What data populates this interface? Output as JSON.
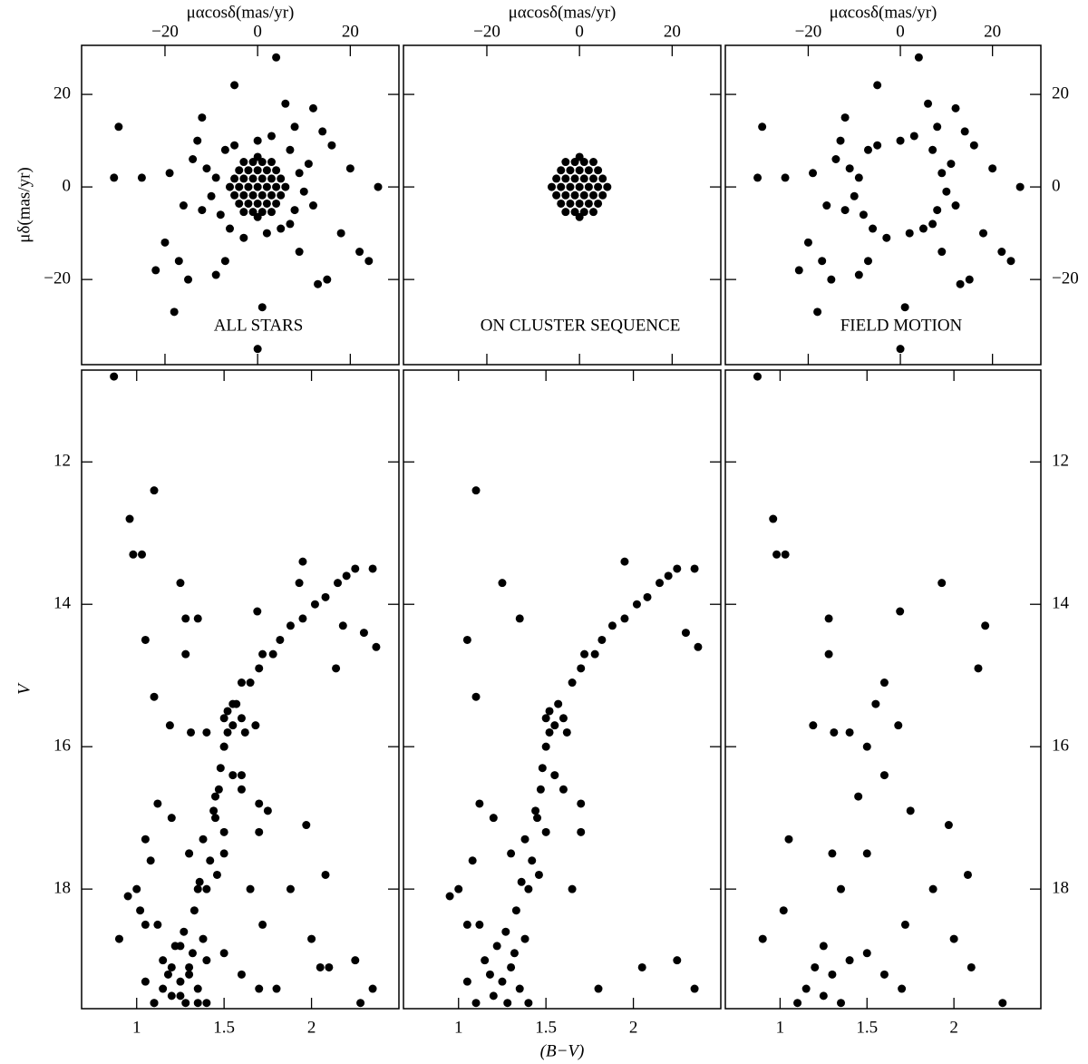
{
  "chart_data": [
    {
      "type": "scatter",
      "color": "#000000",
      "xlabel": "μαcosδ(mas/yr)",
      "ylabel": "μδ(mas/yr)",
      "annotation": "ALL STARS",
      "xtick_labels": "top",
      "ytick_labels": "left",
      "xlim": [
        -38,
        30.5
      ],
      "ylim": [
        -38.4,
        30.6
      ],
      "xticks": [
        {
          "value": -20,
          "label": "−20"
        },
        0,
        20
      ],
      "yticks": [
        {
          "value": -20,
          "label": "−20"
        },
        0,
        20
      ],
      "x": [
        -6,
        -4,
        -2,
        0,
        2,
        4,
        6,
        -5,
        -3,
        -1,
        1,
        3,
        5,
        -5,
        -3,
        -1,
        1,
        3,
        5,
        -4,
        -2,
        0,
        2,
        4,
        -4,
        -2,
        0,
        2,
        4,
        -3,
        -1,
        1,
        3,
        -3,
        -1,
        1,
        3,
        0,
        0,
        9,
        8,
        -9,
        -8,
        0,
        2,
        -5,
        5,
        10,
        -10,
        7,
        -7,
        7,
        -6,
        11,
        -11,
        3,
        -3,
        12,
        -12,
        -13,
        14,
        -22,
        -15,
        18,
        -25,
        -30,
        -31,
        22,
        24,
        26,
        4,
        -5,
        1,
        0,
        -18,
        -20,
        -17,
        15,
        13,
        20,
        -14,
        -16,
        -9,
        9,
        16,
        -12,
        12,
        6,
        -7,
        -19,
        8
      ],
      "values": [
        0,
        0,
        0,
        0,
        0,
        0,
        0,
        1.8,
        1.8,
        1.8,
        1.8,
        1.8,
        1.8,
        -1.8,
        -1.8,
        -1.8,
        -1.8,
        -1.8,
        -1.8,
        3.6,
        3.6,
        3.6,
        3.6,
        3.6,
        -3.6,
        -3.6,
        -3.6,
        -3.6,
        -3.6,
        5.4,
        5.4,
        5.4,
        5.4,
        -5.4,
        -5.4,
        -5.4,
        -5.4,
        6.5,
        -6.5,
        3,
        -5,
        2,
        -6,
        10,
        -10,
        9,
        -9,
        -1,
        -2,
        8,
        8,
        -8,
        -9,
        5,
        4,
        11,
        -11,
        -4,
        -5,
        10,
        12,
        -18,
        -20,
        -10,
        2,
        13,
        2,
        -14,
        -16,
        0,
        28,
        22,
        -26,
        -35,
        -27,
        -12,
        -16,
        -20,
        -21,
        4,
        6,
        -4,
        -19,
        -14,
        9,
        15,
        17,
        18,
        -16,
        3,
        13
      ]
    },
    {
      "type": "scatter",
      "color": "#000000",
      "xlabel": "μαcosδ(mas/yr)",
      "annotation": "ON CLUSTER SEQUENCE",
      "xtick_labels": "top",
      "ytick_labels": "none",
      "xlim": [
        -38,
        30.5
      ],
      "ylim": [
        -38.4,
        30.6
      ],
      "xticks": [
        {
          "value": -20,
          "label": "−20"
        },
        0,
        20
      ],
      "yticks": [
        -20,
        0,
        20
      ],
      "x": [
        -6,
        -4,
        -2,
        0,
        2,
        4,
        6,
        -5,
        -3,
        -1,
        1,
        3,
        5,
        -5,
        -3,
        -1,
        1,
        3,
        5,
        -4,
        -2,
        0,
        2,
        4,
        -4,
        -2,
        0,
        2,
        4,
        -3,
        -1,
        1,
        3,
        -3,
        -1,
        1,
        3,
        0,
        0
      ],
      "values": [
        0,
        0,
        0,
        0,
        0,
        0,
        0,
        1.8,
        1.8,
        1.8,
        1.8,
        1.8,
        1.8,
        -1.8,
        -1.8,
        -1.8,
        -1.8,
        -1.8,
        -1.8,
        3.6,
        3.6,
        3.6,
        3.6,
        3.6,
        -3.6,
        -3.6,
        -3.6,
        -3.6,
        -3.6,
        5.4,
        5.4,
        5.4,
        5.4,
        -5.4,
        -5.4,
        -5.4,
        -5.4,
        6.5,
        -6.5
      ]
    },
    {
      "type": "scatter",
      "color": "#000000",
      "xlabel": "μαcosδ(mas/yr)",
      "annotation": "FIELD MOTION",
      "xtick_labels": "top",
      "ytick_labels": "right",
      "xlim": [
        -38,
        30.5
      ],
      "ylim": [
        -38.4,
        30.6
      ],
      "xticks": [
        {
          "value": -20,
          "label": "−20"
        },
        0,
        20
      ],
      "yticks": [
        {
          "value": -20,
          "label": "−20"
        },
        0,
        20
      ],
      "x": [
        9,
        8,
        -9,
        -8,
        0,
        2,
        -5,
        5,
        10,
        -10,
        7,
        -7,
        7,
        -6,
        11,
        -11,
        3,
        -3,
        12,
        -12,
        -13,
        14,
        -22,
        -15,
        18,
        -25,
        -30,
        -31,
        22,
        24,
        26,
        4,
        -5,
        1,
        0,
        -18,
        -20,
        -17,
        15,
        13,
        20,
        -14,
        -16,
        -9,
        9,
        16,
        -12,
        12,
        6,
        -7,
        -19,
        8
      ],
      "values": [
        3,
        -5,
        2,
        -6,
        10,
        -10,
        9,
        -9,
        -1,
        -2,
        8,
        8,
        -8,
        -9,
        5,
        4,
        11,
        -11,
        -4,
        -5,
        10,
        12,
        -18,
        -20,
        -10,
        2,
        13,
        2,
        -14,
        -16,
        0,
        28,
        22,
        -26,
        -35,
        -27,
        -12,
        -16,
        -20,
        -21,
        4,
        6,
        -4,
        -19,
        -14,
        9,
        15,
        17,
        18,
        -16,
        3,
        13
      ]
    },
    {
      "type": "scatter",
      "color": "#000000",
      "ylabel": "V",
      "xtick_labels": "bottom",
      "ytick_labels": "left",
      "xlim": [
        0.685,
        2.5
      ],
      "ylim": [
        19.68,
        10.71
      ],
      "xticks": [
        1,
        1.5,
        2
      ],
      "yticks": [
        12,
        14,
        16,
        18
      ],
      "x": [
        1.2,
        1.25,
        1.3,
        1.28,
        1.18,
        1.32,
        1.22,
        1.15,
        1.35,
        1.1,
        1.27,
        1.38,
        1.12,
        1.05,
        1.4,
        1.33,
        1.4,
        1.42,
        1.38,
        1.45,
        1.47,
        1.48,
        1.5,
        1.52,
        1.44,
        1.46,
        1.36,
        1.5,
        1.55,
        1.3,
        1.5,
        1.55,
        1.6,
        1.57,
        1.62,
        1.52,
        1.65,
        1.7,
        1.72,
        1.78,
        1.82,
        1.88,
        1.95,
        2.02,
        2.08,
        2.15,
        2.2,
        2.25,
        2.35,
        1.95,
        1.1,
        1.05,
        1.25,
        1.35,
        1.1,
        1.0,
        1.05,
        0.95,
        1.12,
        1.2,
        1.08,
        1.7,
        2.05,
        2.25,
        2.35,
        1.8,
        1.65,
        1.7,
        2.3,
        2.37,
        1.6,
        0.87,
        0.96,
        0.98,
        1.03,
        1.28,
        1.28,
        1.69,
        1.93,
        2.18,
        2.14,
        1.6,
        1.55,
        1.02,
        1.19,
        1.31,
        1.4,
        1.68,
        1.5,
        1.6,
        1.45,
        1.75,
        1.97,
        1.3,
        1.5,
        2.08,
        1.88,
        1.35,
        1.25,
        1.2,
        1.3,
        1.25,
        1.15,
        1.35,
        1.4,
        1.1,
        1.5,
        1.6,
        1.7,
        0.9,
        2.0,
        2.1,
        2.28,
        1.05,
        1.72
      ],
      "values": [
        19.5,
        19.3,
        19.1,
        19.6,
        19.2,
        18.9,
        18.8,
        19.0,
        19.4,
        19.6,
        18.6,
        18.7,
        18.5,
        19.3,
        19.6,
        18.3,
        18.0,
        17.6,
        17.3,
        17.0,
        16.6,
        16.3,
        16.0,
        15.8,
        16.9,
        17.8,
        17.9,
        17.2,
        16.4,
        17.5,
        15.6,
        15.7,
        15.6,
        15.4,
        15.8,
        15.5,
        15.1,
        14.9,
        14.7,
        14.7,
        14.5,
        14.3,
        14.2,
        14.0,
        13.9,
        13.7,
        13.6,
        13.5,
        13.5,
        13.4,
        12.4,
        14.5,
        13.7,
        14.2,
        15.3,
        18.0,
        18.5,
        18.1,
        16.8,
        17.0,
        17.6,
        16.8,
        19.1,
        19.0,
        19.4,
        19.4,
        18.0,
        17.2,
        14.4,
        14.6,
        16.6,
        10.8,
        12.8,
        13.3,
        13.3,
        14.2,
        14.7,
        14.1,
        13.7,
        14.3,
        14.9,
        15.1,
        15.4,
        18.3,
        15.7,
        15.8,
        15.8,
        15.7,
        16.0,
        16.4,
        16.7,
        16.9,
        17.1,
        17.5,
        17.5,
        17.8,
        18.0,
        18.0,
        18.8,
        19.1,
        19.2,
        19.5,
        19.4,
        19.6,
        19.0,
        19.6,
        18.9,
        19.2,
        19.4,
        18.7,
        18.7,
        19.1,
        19.6,
        17.3,
        18.5
      ]
    },
    {
      "type": "scatter",
      "color": "#000000",
      "xlabel": "(B−V)",
      "xtick_labels": "bottom",
      "ytick_labels": "none",
      "xlim": [
        0.685,
        2.5
      ],
      "ylim": [
        19.68,
        10.71
      ],
      "xticks": [
        1,
        1.5,
        2
      ],
      "yticks": [
        12,
        14,
        16,
        18
      ],
      "x": [
        1.2,
        1.25,
        1.3,
        1.28,
        1.18,
        1.32,
        1.22,
        1.15,
        1.35,
        1.1,
        1.27,
        1.38,
        1.12,
        1.05,
        1.4,
        1.33,
        1.4,
        1.42,
        1.38,
        1.45,
        1.47,
        1.48,
        1.5,
        1.52,
        1.44,
        1.46,
        1.36,
        1.5,
        1.55,
        1.3,
        1.5,
        1.55,
        1.6,
        1.57,
        1.62,
        1.52,
        1.65,
        1.7,
        1.72,
        1.78,
        1.82,
        1.88,
        1.95,
        2.02,
        2.08,
        2.15,
        2.2,
        2.25,
        2.35,
        1.95,
        1.1,
        1.05,
        1.25,
        1.35,
        1.1,
        1.0,
        1.05,
        0.95,
        1.12,
        1.2,
        1.08,
        1.7,
        2.05,
        2.25,
        2.35,
        1.8,
        1.65,
        1.7,
        2.3,
        2.37,
        1.6
      ],
      "values": [
        19.5,
        19.3,
        19.1,
        19.6,
        19.2,
        18.9,
        18.8,
        19.0,
        19.4,
        19.6,
        18.6,
        18.7,
        18.5,
        19.3,
        19.6,
        18.3,
        18.0,
        17.6,
        17.3,
        17.0,
        16.6,
        16.3,
        16.0,
        15.8,
        16.9,
        17.8,
        17.9,
        17.2,
        16.4,
        17.5,
        15.6,
        15.7,
        15.6,
        15.4,
        15.8,
        15.5,
        15.1,
        14.9,
        14.7,
        14.7,
        14.5,
        14.3,
        14.2,
        14.0,
        13.9,
        13.7,
        13.6,
        13.5,
        13.5,
        13.4,
        12.4,
        14.5,
        13.7,
        14.2,
        15.3,
        18.0,
        18.5,
        18.1,
        16.8,
        17.0,
        17.6,
        16.8,
        19.1,
        19.0,
        19.4,
        19.4,
        18.0,
        17.2,
        14.4,
        14.6,
        16.6
      ]
    },
    {
      "type": "scatter",
      "color": "#000000",
      "xtick_labels": "bottom",
      "ytick_labels": "right",
      "xlim": [
        0.685,
        2.5
      ],
      "ylim": [
        19.68,
        10.71
      ],
      "xticks": [
        1,
        1.5,
        2
      ],
      "yticks": [
        12,
        14,
        16,
        18
      ],
      "x": [
        0.87,
        0.96,
        0.98,
        1.03,
        1.28,
        1.28,
        1.69,
        1.93,
        2.18,
        2.14,
        1.6,
        1.55,
        1.02,
        1.19,
        1.31,
        1.4,
        1.68,
        1.5,
        1.6,
        1.45,
        1.75,
        1.97,
        1.3,
        1.5,
        2.08,
        1.88,
        1.35,
        1.25,
        1.2,
        1.3,
        1.25,
        1.15,
        1.35,
        1.4,
        1.1,
        1.5,
        1.6,
        1.7,
        0.9,
        2.0,
        2.1,
        2.28,
        1.05,
        1.72
      ],
      "values": [
        10.8,
        12.8,
        13.3,
        13.3,
        14.2,
        14.7,
        14.1,
        13.7,
        14.3,
        14.9,
        15.1,
        15.4,
        18.3,
        15.7,
        15.8,
        15.8,
        15.7,
        16.0,
        16.4,
        16.7,
        16.9,
        17.1,
        17.5,
        17.5,
        17.8,
        18.0,
        18.0,
        18.8,
        19.1,
        19.2,
        19.5,
        19.4,
        19.6,
        19.0,
        19.6,
        18.9,
        19.2,
        19.4,
        18.7,
        18.7,
        19.1,
        19.6,
        17.3,
        18.5
      ]
    }
  ]
}
